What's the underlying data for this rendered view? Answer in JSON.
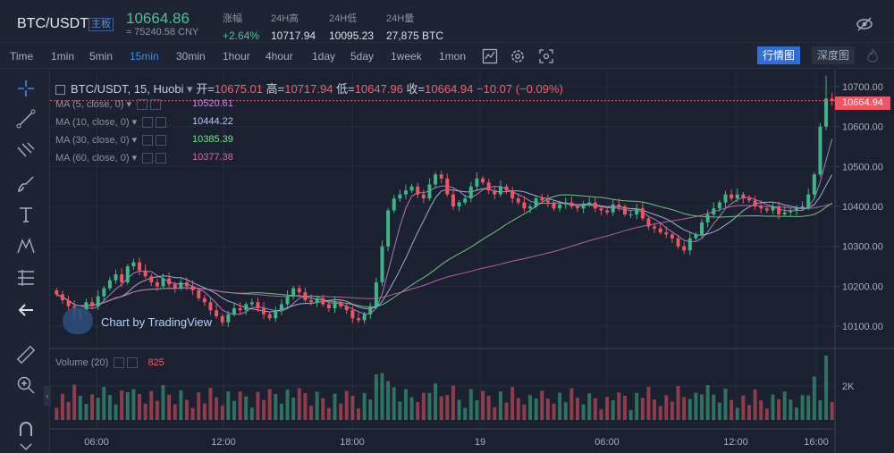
{
  "header": {
    "pair": "BTC/USDT",
    "badge": "主板",
    "last_price": "10664.86",
    "cny": "≈ 75240.58 CNY",
    "stats": [
      {
        "label": "涨幅",
        "value": "+2.64%"
      },
      {
        "label": "24H高",
        "value": "10717.94"
      },
      {
        "label": "24H低",
        "value": "10095.23"
      },
      {
        "label": "24H量",
        "value": "27,875 BTC"
      }
    ]
  },
  "toolbar": {
    "timeframes": [
      "Time",
      "1min",
      "5min",
      "15min",
      "30min",
      "1hour",
      "4hour",
      "1day",
      "5day",
      "1week",
      "1mon"
    ],
    "active": "15min",
    "view_market": "行情图",
    "view_depth": "深度图"
  },
  "legend": {
    "symbol": "BTC/USDT, 15, Huobi",
    "open_label": "开=",
    "open": "10675.01",
    "high_label": "高=",
    "high": "10717.94",
    "low_label": "低=",
    "low": "10647.96",
    "close_label": "收=",
    "close": "10664.94",
    "change": "−10.07 (−0.09%)",
    "ma": [
      {
        "label": "MA (5, close, 0)",
        "value": "10520.61",
        "color": "#c48cdc"
      },
      {
        "label": "MA (10, close, 0)",
        "value": "10444.22",
        "color": "#b8c6e8"
      },
      {
        "label": "MA (30, close, 0)",
        "value": "10385.39",
        "color": "#7ee08f"
      },
      {
        "label": "MA (60, close, 0)",
        "value": "10377.38",
        "color": "#d56ab3"
      }
    ],
    "volume_label": "Volume (20)",
    "volume_value": "825"
  },
  "watermark": "Chart by TradingView",
  "price_tag": "10664.94",
  "colors": {
    "up": "#3fb687",
    "down": "#ef5562",
    "accent": "#3c8cf0"
  },
  "chart_data": {
    "type": "candlestick",
    "y_ticks": [
      "10700.00",
      "10600.00",
      "10500.00",
      "10400.00",
      "10300.00",
      "10200.00",
      "10100.00"
    ],
    "ylim": [
      10060,
      10720
    ],
    "x_ticks": [
      "06:00",
      "12:00",
      "18:00",
      "19",
      "06:00",
      "12:00",
      "16:00"
    ],
    "volume_ticks": [
      "2K"
    ],
    "closes": [
      10180,
      10165,
      10150,
      10120,
      10140,
      10160,
      10150,
      10175,
      10195,
      10215,
      10230,
      10210,
      10250,
      10260,
      10240,
      10225,
      10210,
      10200,
      10220,
      10205,
      10195,
      10210,
      10200,
      10190,
      10170,
      10160,
      10140,
      10125,
      10110,
      10130,
      10145,
      10140,
      10155,
      10160,
      10145,
      10130,
      10120,
      10140,
      10155,
      10175,
      10195,
      10185,
      10165,
      10160,
      10170,
      10155,
      10145,
      10160,
      10150,
      10140,
      10120,
      10115,
      10130,
      10150,
      10210,
      10300,
      10390,
      10420,
      10430,
      10440,
      10450,
      10430,
      10420,
      10455,
      10480,
      10470,
      10430,
      10400,
      10410,
      10420,
      10450,
      10470,
      10460,
      10440,
      10430,
      10450,
      10440,
      10420,
      10410,
      10395,
      10400,
      10420,
      10415,
      10410,
      10395,
      10405,
      10410,
      10400,
      10395,
      10405,
      10410,
      10395,
      10390,
      10385,
      10405,
      10400,
      10380,
      10380,
      10395,
      10370,
      10350,
      10345,
      10335,
      10330,
      10320,
      10300,
      10290,
      10320,
      10330,
      10360,
      10380,
      10395,
      10410,
      10430,
      10420,
      10430,
      10420,
      10415,
      10400,
      10395,
      10390,
      10400,
      10380,
      10385,
      10390,
      10395,
      10400,
      10430,
      10480,
      10600,
      10670,
      10665
    ]
  }
}
